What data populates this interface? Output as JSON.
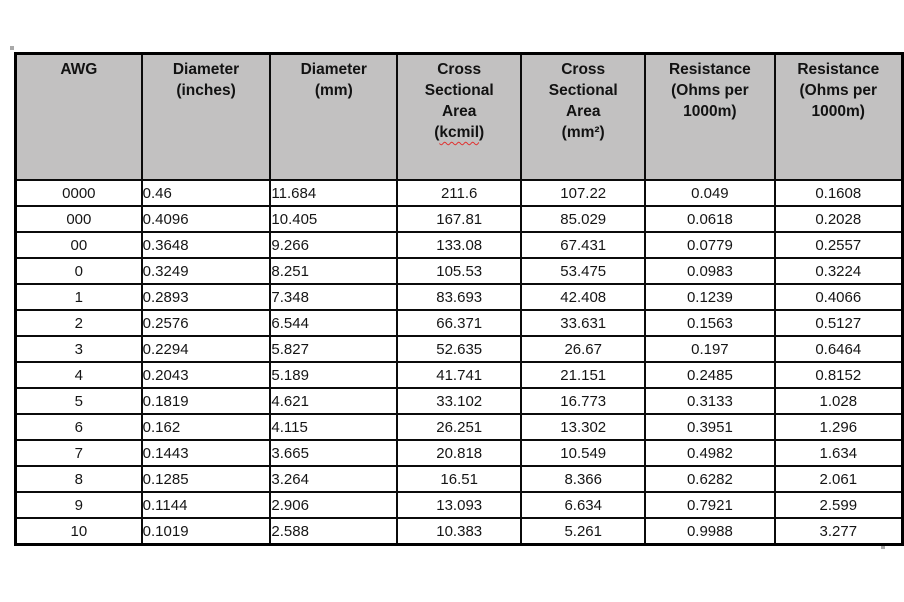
{
  "table": {
    "header_bg": "#c2c1c1",
    "border_color": "#000000",
    "spellcheck_color": "#e0312f",
    "columns": [
      {
        "id": "awg",
        "lines": [
          "AWG"
        ],
        "align": "center",
        "width": 123
      },
      {
        "id": "diameter-inches",
        "lines": [
          "Diameter",
          "(inches)"
        ],
        "align": "left",
        "width": 125
      },
      {
        "id": "diameter-mm",
        "lines": [
          "Diameter",
          "(mm)"
        ],
        "align": "left",
        "width": 123
      },
      {
        "id": "cross-sectional-area-kcmil",
        "lines": [
          "Cross",
          "Sectional",
          "Area"
        ],
        "spellcheck_line": {
          "prefix": "(",
          "word": "kcmil",
          "suffix": ")"
        },
        "align": "center",
        "width": 120
      },
      {
        "id": "cross-sectional-area-mm2",
        "lines": [
          "Cross",
          "Sectional",
          "Area",
          "(mm²)"
        ],
        "align": "center",
        "width": 120
      },
      {
        "id": "resistance-ohms-per-1000m-a",
        "lines": [
          "Resistance",
          "(Ohms per",
          "1000m)"
        ],
        "align": "center",
        "width": 125
      },
      {
        "id": "resistance-ohms-per-1000m-b",
        "lines": [
          "Resistance",
          "(Ohms per",
          "1000m)"
        ],
        "align": "center",
        "width": 123
      }
    ],
    "rows": [
      [
        "0000",
        "0.46",
        "11.684",
        "211.6",
        "107.22",
        "0.049",
        "0.1608"
      ],
      [
        "000",
        "0.4096",
        "10.405",
        "167.81",
        "85.029",
        "0.0618",
        "0.2028"
      ],
      [
        "00",
        "0.3648",
        "9.266",
        "133.08",
        "67.431",
        "0.0779",
        "0.2557"
      ],
      [
        "0",
        "0.3249",
        "8.251",
        "105.53",
        "53.475",
        "0.0983",
        "0.3224"
      ],
      [
        "1",
        "0.2893",
        "7.348",
        "83.693",
        "42.408",
        "0.1239",
        "0.4066"
      ],
      [
        "2",
        "0.2576",
        "6.544",
        "66.371",
        "33.631",
        "0.1563",
        "0.5127"
      ],
      [
        "3",
        "0.2294",
        "5.827",
        "52.635",
        "26.67",
        "0.197",
        "0.6464"
      ],
      [
        "4",
        "0.2043",
        "5.189",
        "41.741",
        "21.151",
        "0.2485",
        "0.8152"
      ],
      [
        "5",
        "0.1819",
        "4.621",
        "33.102",
        "16.773",
        "0.3133",
        "1.028"
      ],
      [
        "6",
        "0.162",
        "4.115",
        "26.251",
        "13.302",
        "0.3951",
        "1.296"
      ],
      [
        "7",
        "0.1443",
        "3.665",
        "20.818",
        "10.549",
        "0.4982",
        "1.634"
      ],
      [
        "8",
        "0.1285",
        "3.264",
        "16.51",
        "8.366",
        "0.6282",
        "2.061"
      ],
      [
        "9",
        "0.1144",
        "2.906",
        "13.093",
        "6.634",
        "0.7921",
        "2.599"
      ],
      [
        "10",
        "0.1019",
        "2.588",
        "10.383",
        "5.261",
        "0.9988",
        "3.277"
      ]
    ]
  }
}
